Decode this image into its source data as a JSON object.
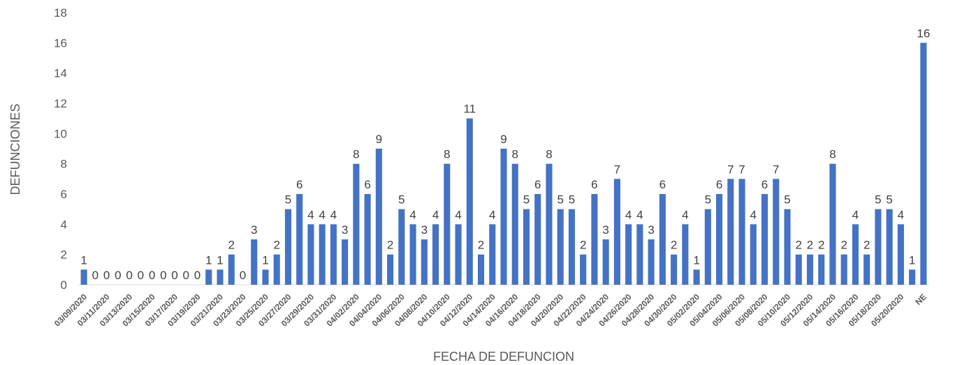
{
  "chart_data": {
    "type": "bar",
    "title": "",
    "xlabel": "FECHA DE DEFUNCION",
    "ylabel": "DEFUNCIONES",
    "ylim": [
      0,
      18
    ],
    "yticks": [
      0,
      2,
      4,
      6,
      8,
      10,
      12,
      14,
      16,
      18
    ],
    "grid": false,
    "legend": "none",
    "bar_color": "#4472C4",
    "categories": [
      "03/09/2020",
      "03/10/2020",
      "03/11/2020",
      "03/12/2020",
      "03/13/2020",
      "03/14/2020",
      "03/15/2020",
      "03/16/2020",
      "03/17/2020",
      "03/18/2020",
      "03/19/2020",
      "03/20/2020",
      "03/21/2020",
      "03/22/2020",
      "03/23/2020",
      "03/24/2020",
      "03/25/2020",
      "03/26/2020",
      "03/27/2020",
      "03/28/2020",
      "03/29/2020",
      "03/30/2020",
      "03/31/2020",
      "04/01/2020",
      "04/02/2020",
      "04/03/2020",
      "04/04/2020",
      "04/05/2020",
      "04/06/2020",
      "04/07/2020",
      "04/08/2020",
      "04/09/2020",
      "04/10/2020",
      "04/11/2020",
      "04/12/2020",
      "04/13/2020",
      "04/14/2020",
      "04/15/2020",
      "04/16/2020",
      "04/17/2020",
      "04/18/2020",
      "04/19/2020",
      "04/20/2020",
      "04/21/2020",
      "04/22/2020",
      "04/23/2020",
      "04/24/2020",
      "04/25/2020",
      "04/26/2020",
      "04/27/2020",
      "04/28/2020",
      "04/29/2020",
      "04/30/2020",
      "05/01/2020",
      "05/02/2020",
      "05/03/2020",
      "05/04/2020",
      "05/05/2020",
      "05/06/2020",
      "05/07/2020",
      "05/08/2020",
      "05/09/2020",
      "05/10/2020",
      "05/11/2020",
      "05/12/2020",
      "05/13/2020",
      "05/14/2020",
      "05/15/2020",
      "05/16/2020",
      "05/17/2020",
      "05/18/2020",
      "05/19/2020",
      "05/20/2020",
      "05/21/2020",
      "NE"
    ],
    "values": [
      1,
      0,
      0,
      0,
      0,
      0,
      0,
      0,
      0,
      0,
      0,
      1,
      1,
      2,
      0,
      3,
      1,
      2,
      5,
      6,
      4,
      4,
      4,
      3,
      8,
      6,
      9,
      2,
      5,
      4,
      3,
      4,
      8,
      4,
      11,
      2,
      4,
      9,
      8,
      5,
      6,
      8,
      5,
      5,
      2,
      6,
      3,
      7,
      4,
      4,
      3,
      6,
      2,
      4,
      1,
      5,
      6,
      7,
      7,
      4,
      6,
      7,
      5,
      2,
      2,
      2,
      8,
      2,
      4,
      2,
      5,
      5,
      4,
      1,
      16
    ],
    "labeled_tick_indices": [
      0,
      2,
      4,
      6,
      8,
      10,
      12,
      14,
      16,
      18,
      20,
      22,
      24,
      26,
      28,
      30,
      32,
      34,
      36,
      38,
      40,
      42,
      44,
      46,
      48,
      50,
      52,
      54,
      56,
      58,
      60,
      62,
      64,
      66,
      68,
      70,
      72,
      74
    ]
  }
}
